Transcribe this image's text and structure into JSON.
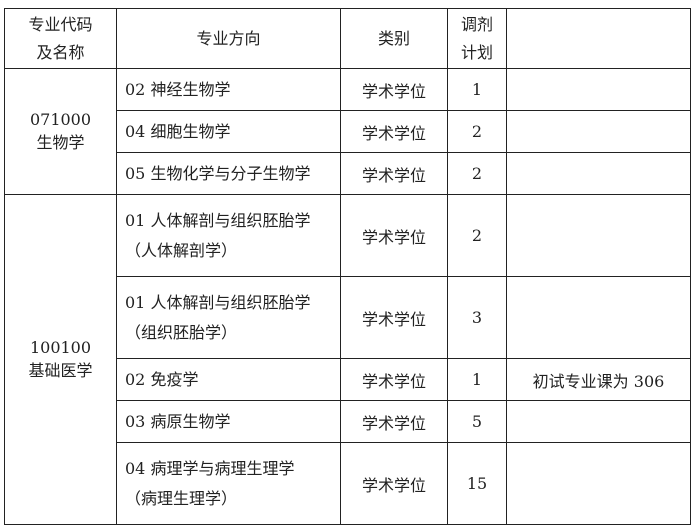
{
  "headers": {
    "code": "专业代码及名称",
    "code_l1": "专业代码",
    "code_l2": "及名称",
    "direction": "专业方向",
    "category": "类别",
    "plan_l1": "调剂",
    "plan_l2": "计划",
    "note": ""
  },
  "groups": [
    {
      "code": "071000",
      "name": "生物学",
      "rows": [
        {
          "direction": "02 神经生物学",
          "sub": "",
          "category": "学术学位",
          "plan": "1",
          "note": ""
        },
        {
          "direction": "04 细胞生物学",
          "sub": "",
          "category": "学术学位",
          "plan": "2",
          "note": ""
        },
        {
          "direction": "05 生物化学与分子生物学",
          "sub": "",
          "category": "学术学位",
          "plan": "2",
          "note": ""
        }
      ]
    },
    {
      "code": "100100",
      "name": "基础医学",
      "rows": [
        {
          "direction": "01 人体解剖与组织胚胎学",
          "sub": "（人体解剖学）",
          "category": "学术学位",
          "plan": "2",
          "note": ""
        },
        {
          "direction": "01 人体解剖与组织胚胎学",
          "sub": "（组织胚胎学）",
          "category": "学术学位",
          "plan": "3",
          "note": ""
        },
        {
          "direction": "02 免疫学",
          "sub": "",
          "category": "学术学位",
          "plan": "1",
          "note": "初试专业课为 306"
        },
        {
          "direction": "03 病原生物学",
          "sub": "",
          "category": "学术学位",
          "plan": "5",
          "note": ""
        },
        {
          "direction": "04 病理学与病理生理学",
          "sub": "（病理生理学）",
          "category": "学术学位",
          "plan": "15",
          "note": ""
        }
      ]
    }
  ]
}
